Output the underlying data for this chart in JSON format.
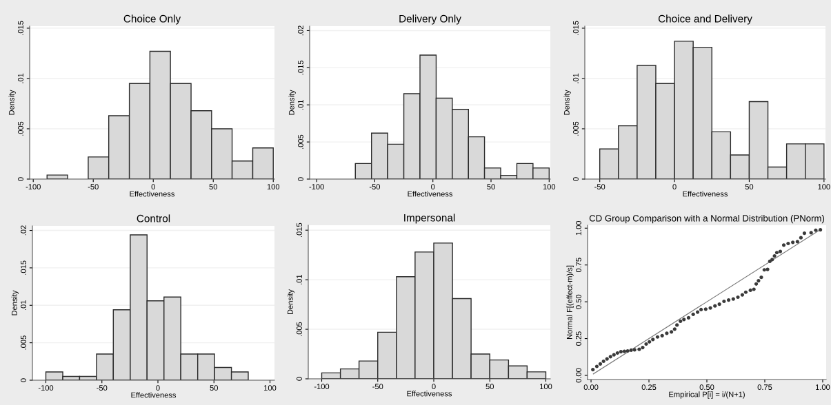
{
  "chart_data": [
    {
      "type": "histogram",
      "title": "Choice Only",
      "xlabel": "Effectiveness",
      "ylabel": "Density",
      "color": "#d9d9d9",
      "grid": "y",
      "bins": [
        -88.5,
        -71.4,
        -54.2,
        -37.1,
        -19.9,
        -2.8,
        14.3,
        31.5,
        48.6,
        65.7,
        82.9,
        100
      ],
      "values": [
        0.0004,
        0,
        0.0022,
        0.0063,
        0.0095,
        0.0127,
        0.0095,
        0.0068,
        0.005,
        0.0018,
        0.0031
      ],
      "xlim": [
        -103,
        101
      ],
      "xticks": [
        -100,
        -50,
        0,
        50,
        100
      ],
      "ylim": [
        0,
        0.0152
      ],
      "yticks": [
        {
          "value": 0,
          "label": "0"
        },
        {
          "value": 0.005,
          "label": ".005"
        },
        {
          "value": 0.01,
          "label": ".01"
        },
        {
          "value": 0.015,
          "label": ".015"
        }
      ]
    },
    {
      "type": "histogram",
      "title": "Delivery Only",
      "xlabel": "Effectiveness",
      "ylabel": "Density",
      "color": "#d9d9d9",
      "grid": "y",
      "bins": [
        -66.7,
        -52.8,
        -38.9,
        -25,
        -11.1,
        2.8,
        16.7,
        30.6,
        44.4,
        58.3,
        72.2,
        86.1,
        100
      ],
      "values": [
        0.0021,
        0.0062,
        0.0047,
        0.0115,
        0.0167,
        0.0109,
        0.0094,
        0.0057,
        0.0015,
        0.0005,
        0.0021,
        0.0015
      ],
      "xlim": [
        -106,
        101
      ],
      "xticks": [
        -100,
        -50,
        0,
        50,
        100
      ],
      "ylim": [
        0,
        0.0206
      ],
      "yticks": [
        {
          "value": 0,
          "label": "0"
        },
        {
          "value": 0.005,
          "label": ".005"
        },
        {
          "value": 0.01,
          "label": ".01"
        },
        {
          "value": 0.015,
          "label": ".015"
        },
        {
          "value": 0.02,
          "label": ".02"
        }
      ]
    },
    {
      "type": "histogram",
      "title": "Choice and Delivery",
      "xlabel": "Effectiveness",
      "ylabel": "Density",
      "color": "#d9d9d9",
      "grid": "y",
      "bins": [
        -50,
        -37.5,
        -25,
        -12.5,
        0,
        12.5,
        25,
        37.5,
        50,
        62.5,
        75,
        87.5,
        100
      ],
      "values": [
        0.003,
        0.0053,
        0.0113,
        0.0095,
        0.0137,
        0.0131,
        0.0047,
        0.0024,
        0.0077,
        0.0012,
        0.0035,
        0.0035
      ],
      "xlim": [
        -60,
        101
      ],
      "xticks": [
        -50,
        0,
        50,
        100
      ],
      "ylim": [
        0,
        0.0152
      ],
      "yticks": [
        {
          "value": 0,
          "label": "0"
        },
        {
          "value": 0.005,
          "label": ".005"
        },
        {
          "value": 0.01,
          "label": ".01"
        },
        {
          "value": 0.015,
          "label": ".015"
        }
      ]
    },
    {
      "type": "histogram",
      "title": "Control",
      "xlabel": "Effectiveness",
      "ylabel": "Density",
      "color": "#d9d9d9",
      "grid": "y",
      "bins": [
        -100,
        -84.9,
        -69.9,
        -54.8,
        -39.8,
        -24.7,
        -9.7,
        5.4,
        20.4,
        35.5,
        50.5,
        65.6,
        80.6
      ],
      "values": [
        0.0011,
        0.0005,
        0.0005,
        0.0035,
        0.0094,
        0.0194,
        0.0106,
        0.0111,
        0.0035,
        0.0035,
        0.0017,
        0.0011
      ],
      "xlim": [
        -112,
        104
      ],
      "xticks": [
        -100,
        -50,
        0,
        50,
        100
      ],
      "ylim": [
        0,
        0.0206
      ],
      "yticks": [
        {
          "value": 0,
          "label": "0"
        },
        {
          "value": 0.005,
          "label": ".005"
        },
        {
          "value": 0.01,
          "label": ".01"
        },
        {
          "value": 0.015,
          "label": ".015"
        },
        {
          "value": 0.02,
          "label": ".02"
        }
      ]
    },
    {
      "type": "histogram",
      "title": "Impersonal",
      "xlabel": "Effectiveness",
      "ylabel": "Density",
      "color": "#d9d9d9",
      "grid": "y",
      "bins": [
        -100,
        -83.3,
        -66.7,
        -50,
        -33.3,
        -16.7,
        0,
        16.7,
        33.3,
        50,
        66.7,
        83.3,
        100
      ],
      "values": [
        0.0006,
        0.001,
        0.0018,
        0.0047,
        0.0103,
        0.0128,
        0.0137,
        0.0081,
        0.0025,
        0.0019,
        0.0013,
        0.0007
      ],
      "xlim": [
        -112,
        104
      ],
      "xticks": [
        -100,
        -50,
        0,
        50,
        100
      ],
      "ylim": [
        0,
        0.0155
      ],
      "yticks": [
        {
          "value": 0,
          "label": "0"
        },
        {
          "value": 0.005,
          "label": ".005"
        },
        {
          "value": 0.01,
          "label": ".01"
        },
        {
          "value": 0.015,
          "label": ".015"
        }
      ]
    },
    {
      "type": "scatter",
      "title": "CD Group Comparison with a Normal Distribution (PNorm)",
      "xlabel": "Empirical P[i] = i/(N+1)",
      "ylabel": "Normal F[(effect-m)/s]",
      "grid": false,
      "xlim": [
        -0.015,
        1.015
      ],
      "ylim": [
        -0.028,
        1.02
      ],
      "xticks": [
        {
          "value": 0,
          "label": "0.00"
        },
        {
          "value": 0.25,
          "label": "0.25"
        },
        {
          "value": 0.5,
          "label": "0.50"
        },
        {
          "value": 0.75,
          "label": "0.75"
        },
        {
          "value": 1,
          "label": "1.00"
        }
      ],
      "yticks": [
        {
          "value": 0,
          "label": "0.00"
        },
        {
          "value": 0.25,
          "label": "0.25"
        },
        {
          "value": 0.5,
          "label": "0.50"
        },
        {
          "value": 0.75,
          "label": "0.75"
        },
        {
          "value": 1,
          "label": "1.00"
        }
      ],
      "series": [
        {
          "type": "scatter",
          "color": "#3a3a3a",
          "marker": "circle",
          "x": [
            0.008,
            0.025,
            0.04,
            0.054,
            0.069,
            0.084,
            0.099,
            0.114,
            0.129,
            0.144,
            0.158,
            0.173,
            0.188,
            0.208,
            0.223,
            0.238,
            0.252,
            0.267,
            0.287,
            0.307,
            0.327,
            0.347,
            0.361,
            0.371,
            0.386,
            0.401,
            0.421,
            0.441,
            0.46,
            0.475,
            0.495,
            0.515,
            0.535,
            0.554,
            0.574,
            0.594,
            0.614,
            0.634,
            0.653,
            0.668,
            0.688,
            0.703,
            0.713,
            0.723,
            0.735,
            0.748,
            0.762,
            0.772,
            0.782,
            0.792,
            0.802,
            0.817,
            0.832,
            0.851,
            0.871,
            0.891,
            0.906,
            0.921,
            0.95,
            0.97,
            0.99
          ],
          "values": [
            0.039,
            0.061,
            0.078,
            0.096,
            0.112,
            0.127,
            0.14,
            0.152,
            0.161,
            0.163,
            0.166,
            0.171,
            0.174,
            0.177,
            0.189,
            0.213,
            0.228,
            0.244,
            0.261,
            0.27,
            0.286,
            0.295,
            0.314,
            0.342,
            0.368,
            0.38,
            0.391,
            0.415,
            0.43,
            0.447,
            0.45,
            0.458,
            0.472,
            0.484,
            0.503,
            0.512,
            0.519,
            0.531,
            0.547,
            0.565,
            0.578,
            0.585,
            0.621,
            0.643,
            0.666,
            0.717,
            0.72,
            0.775,
            0.787,
            0.811,
            0.834,
            0.842,
            0.885,
            0.896,
            0.904,
            0.908,
            0.935,
            0.966,
            0.969,
            0.986,
            0.989
          ]
        },
        {
          "type": "line",
          "color": "#7a7a7a",
          "x": [
            0.01,
            0.99
          ],
          "values": [
            0.01,
            0.99
          ]
        }
      ]
    }
  ]
}
